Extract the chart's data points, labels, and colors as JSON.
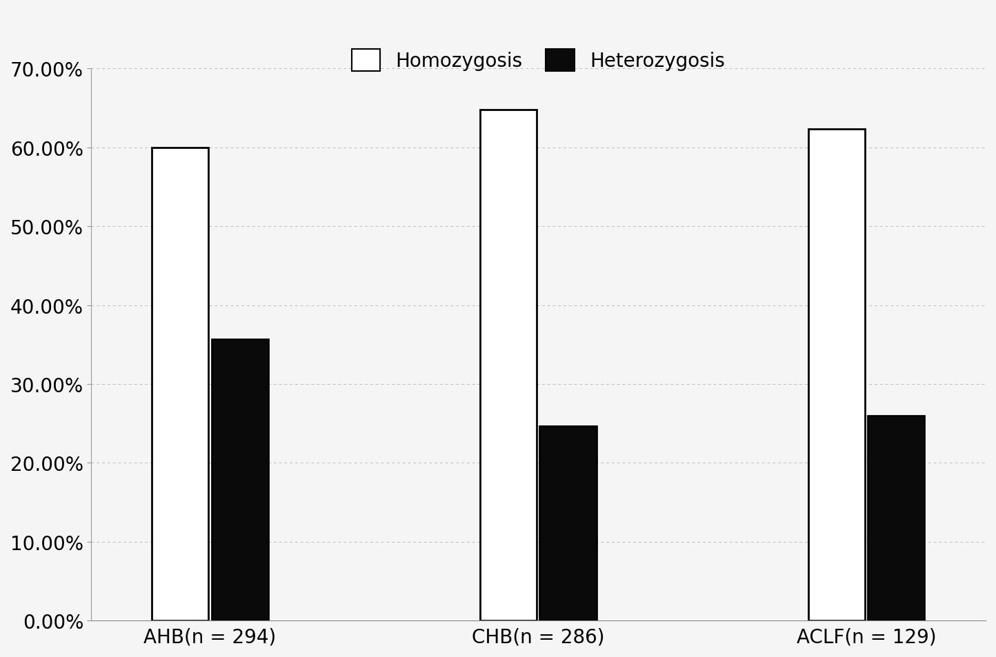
{
  "groups": [
    "AHB(n = 294)",
    "CHB(n = 286)",
    "ACLF(n = 129)"
  ],
  "homozygosis": [
    0.6,
    0.648,
    0.623
  ],
  "heterozygosis": [
    0.357,
    0.247,
    0.26
  ],
  "bar_color_homo": "#ffffff",
  "bar_color_hetero": "#0a0a0a",
  "bar_edgecolor": "#000000",
  "ylim": [
    0,
    0.7
  ],
  "yticks": [
    0.0,
    0.1,
    0.2,
    0.3,
    0.4,
    0.5,
    0.6,
    0.7
  ],
  "yticklabels": [
    "0.00%",
    "10.00%",
    "20.00%",
    "30.00%",
    "40.00%",
    "50.00%",
    "60.00%",
    "70.00%"
  ],
  "legend_labels": [
    "Homozygosis",
    "Heterozygosis"
  ],
  "bar_width": 0.38,
  "group_centers": [
    1.0,
    3.2,
    5.4
  ],
  "background_color": "#f5f5f5",
  "linewidth": 2.0,
  "fontsize_ytick": 20,
  "fontsize_xtick": 20,
  "fontsize_legend": 20
}
